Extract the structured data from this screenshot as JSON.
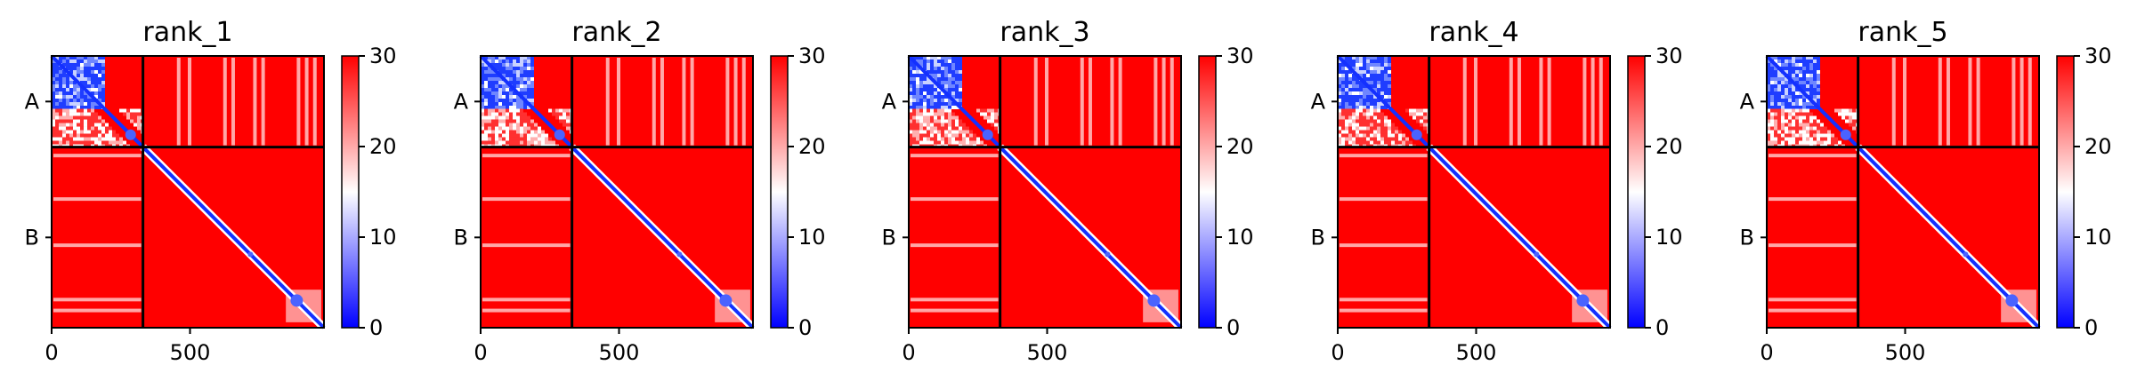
{
  "chart_data": [
    {
      "type": "heatmap",
      "title": "rank_1",
      "xticks": [
        {
          "value": 0,
          "label": "0"
        },
        {
          "value": 500,
          "label": "500"
        }
      ],
      "yticks": [
        {
          "label": "A"
        },
        {
          "label": "B"
        }
      ],
      "chain_labels": [
        "A",
        "B"
      ],
      "chain_boundary": 330,
      "matrix_size": 984,
      "colorbar": {
        "min": 0,
        "max": 30,
        "ticks": [
          0,
          10,
          20,
          30
        ],
        "colors": [
          "#0000ff",
          "#ffffff",
          "#ff0000"
        ]
      }
    },
    {
      "type": "heatmap",
      "title": "rank_2",
      "xticks": [
        {
          "value": 0,
          "label": "0"
        },
        {
          "value": 500,
          "label": "500"
        }
      ],
      "yticks": [
        {
          "label": "A"
        },
        {
          "label": "B"
        }
      ],
      "chain_labels": [
        "A",
        "B"
      ],
      "chain_boundary": 330,
      "matrix_size": 984,
      "colorbar": {
        "min": 0,
        "max": 30,
        "ticks": [
          0,
          10,
          20,
          30
        ],
        "colors": [
          "#0000ff",
          "#ffffff",
          "#ff0000"
        ]
      }
    },
    {
      "type": "heatmap",
      "title": "rank_3",
      "xticks": [
        {
          "value": 0,
          "label": "0"
        },
        {
          "value": 500,
          "label": "500"
        }
      ],
      "yticks": [
        {
          "label": "A"
        },
        {
          "label": "B"
        }
      ],
      "chain_labels": [
        "A",
        "B"
      ],
      "chain_boundary": 330,
      "matrix_size": 984,
      "colorbar": {
        "min": 0,
        "max": 30,
        "ticks": [
          0,
          10,
          20,
          30
        ],
        "colors": [
          "#0000ff",
          "#ffffff",
          "#ff0000"
        ]
      }
    },
    {
      "type": "heatmap",
      "title": "rank_4",
      "xticks": [
        {
          "value": 0,
          "label": "0"
        },
        {
          "value": 500,
          "label": "500"
        }
      ],
      "yticks": [
        {
          "label": "A"
        },
        {
          "label": "B"
        }
      ],
      "chain_labels": [
        "A",
        "B"
      ],
      "chain_boundary": 330,
      "matrix_size": 984,
      "colorbar": {
        "min": 0,
        "max": 30,
        "ticks": [
          0,
          10,
          20,
          30
        ],
        "colors": [
          "#0000ff",
          "#ffffff",
          "#ff0000"
        ]
      }
    },
    {
      "type": "heatmap",
      "title": "rank_5",
      "xticks": [
        {
          "value": 0,
          "label": "0"
        },
        {
          "value": 500,
          "label": "500"
        }
      ],
      "yticks": [
        {
          "label": "A"
        },
        {
          "label": "B"
        }
      ],
      "chain_labels": [
        "A",
        "B"
      ],
      "chain_boundary": 330,
      "matrix_size": 984,
      "colorbar": {
        "min": 0,
        "max": 30,
        "ticks": [
          0,
          10,
          20,
          30
        ],
        "colors": [
          "#0000ff",
          "#ffffff",
          "#ff0000"
        ]
      }
    }
  ]
}
